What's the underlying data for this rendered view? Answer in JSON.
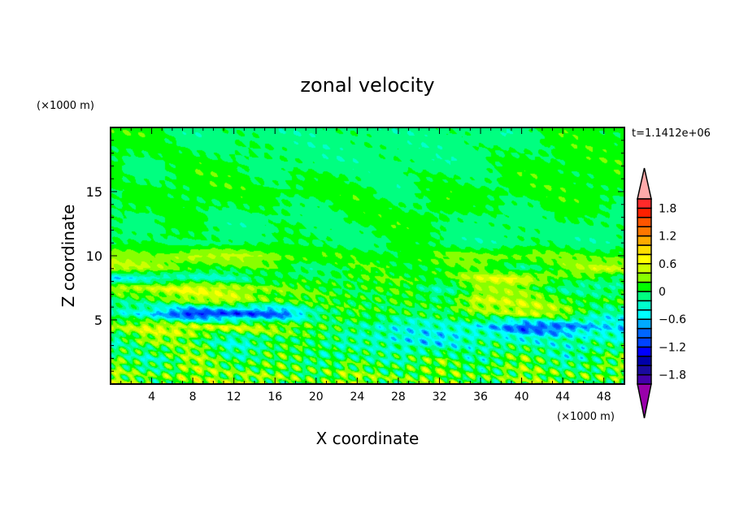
{
  "chart_data": {
    "type": "heatmap",
    "title": "zonal velocity",
    "xlabel": "X coordinate",
    "ylabel": "Z coordinate",
    "x_units": "(×1000 m)",
    "y_units": "(×1000 m)",
    "time_label": "t=1.1412e+06",
    "xlim": [
      0,
      50
    ],
    "ylim": [
      0,
      20
    ],
    "xticks": [
      4,
      8,
      12,
      16,
      20,
      24,
      28,
      32,
      36,
      40,
      44,
      48
    ],
    "yticks": [
      5,
      10,
      15
    ],
    "colorbar": {
      "levels": [
        -2.0,
        -1.8,
        -1.6,
        -1.4,
        -1.2,
        -1.0,
        -0.8,
        -0.6,
        -0.4,
        -0.2,
        0,
        0.2,
        0.4,
        0.6,
        0.8,
        1.0,
        1.2,
        1.4,
        1.6,
        1.8,
        2.0
      ],
      "tick_labels": [
        "1.8",
        "1.2",
        "0.6",
        "0",
        "−0.6",
        "−1.2",
        "−1.8"
      ],
      "tick_values": [
        1.8,
        1.2,
        0.6,
        0,
        -0.6,
        -1.2,
        -1.8
      ],
      "colors_low_to_high": [
        "#4400aa",
        "#1a0aa0",
        "#0000aa",
        "#0000ff",
        "#0044ff",
        "#0066ff",
        "#00aaff",
        "#00ffff",
        "#00ffcc",
        "#00ff80",
        "#00ff00",
        "#88ff00",
        "#ccff00",
        "#ffff00",
        "#ffdd00",
        "#ffaa00",
        "#ff7700",
        "#ff5500",
        "#ff2000",
        "#ff2a2a"
      ],
      "under_color": "#9900aa",
      "over_color": "#ffaaaa"
    },
    "grid_x": [
      0,
      4,
      8,
      12,
      16,
      20,
      24,
      28,
      32,
      36,
      40,
      44,
      48
    ],
    "grid_z": [
      19.5,
      17,
      15,
      13,
      11,
      10,
      9,
      8.3,
      7.5,
      6.5,
      5.5,
      4.5,
      3.5,
      2,
      0.5
    ],
    "values": [
      [
        0.1,
        0.1,
        -0.1,
        -0.1,
        -0.1,
        -0.1,
        -0.1,
        -0.1,
        -0.1,
        -0.1,
        -0.1,
        0.1,
        0.1
      ],
      [
        0.1,
        -0.1,
        0.1,
        0.1,
        -0.1,
        -0.1,
        -0.1,
        -0.1,
        -0.1,
        -0.1,
        0.1,
        0.1,
        0.1
      ],
      [
        -0.1,
        0.1,
        0.1,
        0.1,
        0.1,
        0.1,
        0.1,
        -0.1,
        0.1,
        0.1,
        0.1,
        0.1,
        0.1
      ],
      [
        0.1,
        -0.1,
        0.1,
        -0.1,
        -0.1,
        -0.1,
        0.1,
        0.1,
        0.1,
        -0.1,
        -0.1,
        0.1,
        -0.1
      ],
      [
        -0.1,
        0.1,
        -0.1,
        -0.1,
        0.1,
        -0.1,
        -0.1,
        0.1,
        -0.1,
        -0.1,
        -0.1,
        -0.1,
        -0.1
      ],
      [
        0.3,
        0.2,
        0.5,
        0.4,
        0.3,
        0.2,
        0.1,
        0.1,
        0.2,
        0.3,
        0.3,
        0.2,
        0.2
      ],
      [
        0.5,
        0.3,
        0.1,
        0.1,
        0.1,
        -0.1,
        0.1,
        0.1,
        0.1,
        0.1,
        -0.1,
        0.2,
        0.5
      ],
      [
        -0.5,
        -0.4,
        -0.3,
        -0.2,
        -0.1,
        0.1,
        0.1,
        0.1,
        0.2,
        0.5,
        0.6,
        0.2,
        -0.1
      ],
      [
        0.5,
        0.5,
        0.6,
        0.5,
        0.2,
        0.1,
        0.1,
        0.1,
        -0.2,
        0.3,
        0.2,
        -0.1,
        -0.2
      ],
      [
        -0.2,
        0.1,
        0.3,
        0.5,
        0.2,
        0.1,
        0.1,
        0.1,
        -0.1,
        0.6,
        0.4,
        0.2,
        0.1
      ],
      [
        -0.3,
        -0.5,
        -1.3,
        -1.2,
        -1.0,
        -0.2,
        0.1,
        0.1,
        -0.1,
        0.3,
        0.5,
        0.3,
        -0.2
      ],
      [
        0.3,
        0.5,
        0.6,
        0.5,
        0.4,
        0.2,
        -0.2,
        -0.3,
        -0.3,
        -0.5,
        -1.0,
        -1.0,
        -0.5
      ],
      [
        -0.2,
        0.3,
        0.1,
        -0.3,
        -0.1,
        0.1,
        -0.2,
        -0.4,
        -0.5,
        -0.2,
        -0.3,
        -0.2,
        -0.3
      ],
      [
        0.2,
        -0.2,
        0.3,
        -0.1,
        0.2,
        -0.2,
        0.1,
        -0.2,
        0.2,
        -0.1,
        0.2,
        -0.2,
        0.1
      ],
      [
        0.3,
        0.1,
        0.4,
        0.2,
        0.3,
        0.1,
        0.3,
        0.2,
        0.2,
        0.1,
        0.3,
        0.1,
        0.2
      ]
    ]
  }
}
